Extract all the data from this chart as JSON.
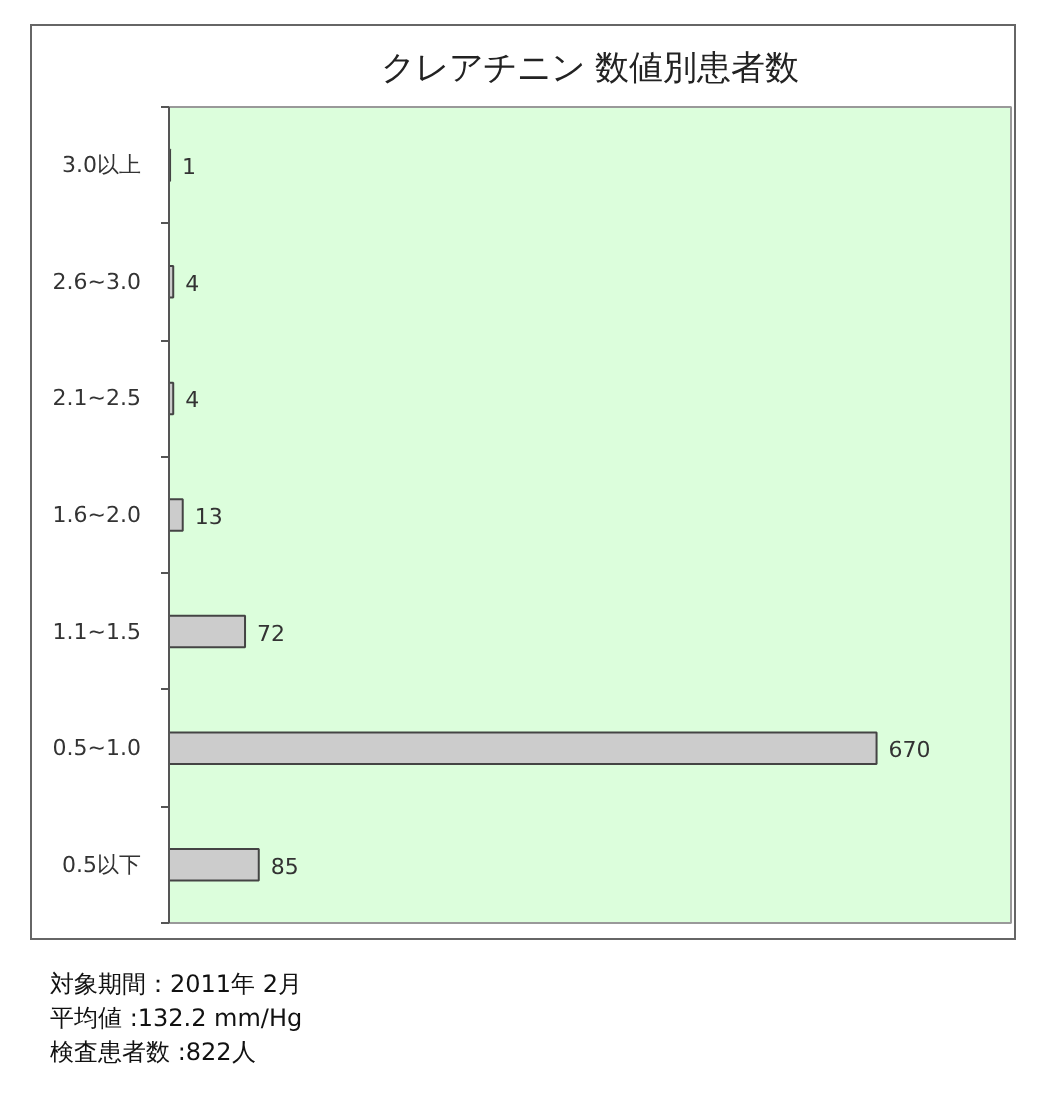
{
  "chart_data": {
    "type": "bar",
    "orientation": "horizontal",
    "title": "クレアチニン 数値別患者数",
    "categories": [
      "3.0以上",
      "2.6~3.0",
      "2.1~2.5",
      "1.6~2.0",
      "1.1~1.5",
      "0.5~1.0",
      "0.5以下"
    ],
    "values": [
      1,
      4,
      4,
      13,
      72,
      670,
      85
    ],
    "color": "#cccccc",
    "data_labels": true,
    "tick_labels": "y",
    "grid": false,
    "annotations": [
      "対象期間：2011年 2月",
      "平均値 :132.2 mm/Hg",
      "検査患者数 :822人"
    ]
  }
}
